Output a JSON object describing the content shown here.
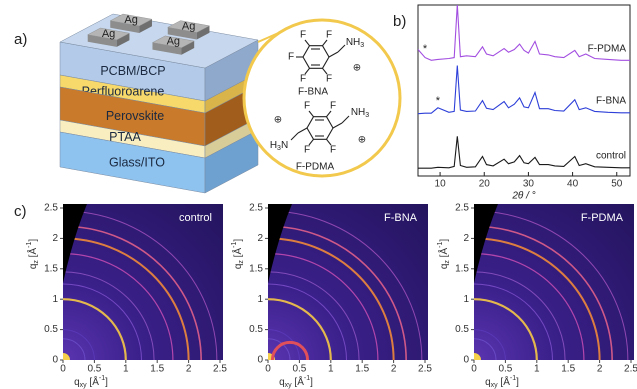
{
  "panel_labels": [
    "a)",
    "b)",
    "c)"
  ],
  "panel_a": {
    "ag": [
      "Ag",
      "Ag",
      "Ag",
      "Ag"
    ],
    "layers": [
      "PCBM/BCP",
      "Perfluoroarene",
      "Perovskite",
      "PTAA",
      "Glass/ITO"
    ],
    "molecules": [
      {
        "name": "F-BNA",
        "fluorines": [
          "F",
          "F",
          "F",
          "F",
          "F"
        ],
        "amine": [
          "NH",
          "3"
        ],
        "charge": "⊕"
      },
      {
        "name": "F-PDMA",
        "fluorines": [
          "F",
          "F",
          "F",
          "F"
        ],
        "amine": [
          "NH",
          "3"
        ],
        "amine_left": [
          "H",
          "3",
          "N"
        ],
        "charges": [
          "⊕",
          "⊕"
        ]
      }
    ]
  },
  "chart_data": [
    {
      "type": "line",
      "xlabel": "2θ / °",
      "x": [
        5,
        6.6,
        8,
        9.5,
        12,
        13.2,
        13.9,
        14.6,
        16,
        18,
        19.6,
        20.5,
        22,
        24.5,
        25.5,
        26.8,
        28,
        29,
        30,
        31.5,
        32.5,
        34.5,
        36,
        38,
        40.5,
        41.5,
        43,
        45,
        48,
        51,
        53
      ],
      "xlim": [
        5,
        53
      ],
      "xticks": [
        10,
        20,
        30,
        40,
        50
      ],
      "series": [
        {
          "name": "control",
          "color": "#1a1a1a",
          "values": [
            4,
            4,
            4,
            6,
            5,
            8,
            75,
            10,
            6,
            7,
            30,
            12,
            9,
            24,
            14,
            18,
            32,
            16,
            14,
            28,
            12,
            12,
            9,
            8,
            30,
            10,
            14,
            7,
            6,
            5,
            5
          ]
        },
        {
          "name": "F-BNA",
          "color": "#2d3fd8",
          "values": [
            3,
            4,
            4,
            16,
            6,
            8,
            110,
            11,
            8,
            9,
            32,
            15,
            12,
            30,
            16,
            24,
            38,
            18,
            16,
            50,
            14,
            14,
            10,
            9,
            34,
            12,
            16,
            8,
            6,
            5,
            5
          ],
          "annotations": [
            {
              "text": "*",
              "x": 9.5
            }
          ]
        },
        {
          "name": "F-PDMA",
          "color": "#a24ee0",
          "values": [
            30,
            12,
            6,
            8,
            10,
            12,
            130,
            14,
            16,
            14,
            36,
            20,
            16,
            32,
            24,
            30,
            42,
            28,
            22,
            48,
            20,
            18,
            14,
            12,
            28,
            14,
            20,
            10,
            8,
            6,
            6
          ],
          "annotations": [
            {
              "text": "*",
              "x": 6.6
            }
          ]
        }
      ]
    },
    {
      "type": "image",
      "label": "control",
      "xlabel": [
        "q",
        "xy",
        " [Å",
        "-1",
        "]"
      ],
      "ylabel": [
        "q",
        "z",
        " [Å",
        "-1",
        "]"
      ],
      "xlim": [
        0,
        2.5
      ],
      "ylim": [
        0,
        2.5
      ],
      "xticks": [
        0,
        0.5,
        1,
        1.5,
        2,
        2.5
      ],
      "yticks": [
        0,
        0.5,
        1,
        1.5,
        2,
        2.5
      ]
    },
    {
      "type": "image",
      "label": "F-BNA",
      "xlabel": [
        "q",
        "xy",
        " [Å",
        "-1",
        "]"
      ],
      "ylabel": [
        "q",
        "z",
        " [Å",
        "-1",
        "]"
      ],
      "xlim": [
        0,
        2.5
      ],
      "ylim": [
        0,
        2.5
      ],
      "xticks": [
        0,
        0.5,
        1,
        1.5,
        2,
        2.5
      ],
      "yticks": [
        0,
        0.5,
        1,
        1.5,
        2,
        2.5
      ]
    },
    {
      "type": "image",
      "label": "F-PDMA",
      "xlabel": [
        "q",
        "xy",
        " [Å",
        "-1",
        "]"
      ],
      "ylabel": [
        "q",
        "z",
        " [Å",
        "-1",
        "]"
      ],
      "xlim": [
        0,
        2.5
      ],
      "ylim": [
        0,
        2.5
      ],
      "xticks": [
        0,
        0.5,
        1,
        1.5,
        2,
        2.5
      ],
      "yticks": [
        0,
        0.5,
        1,
        1.5,
        2,
        2.5
      ]
    }
  ]
}
